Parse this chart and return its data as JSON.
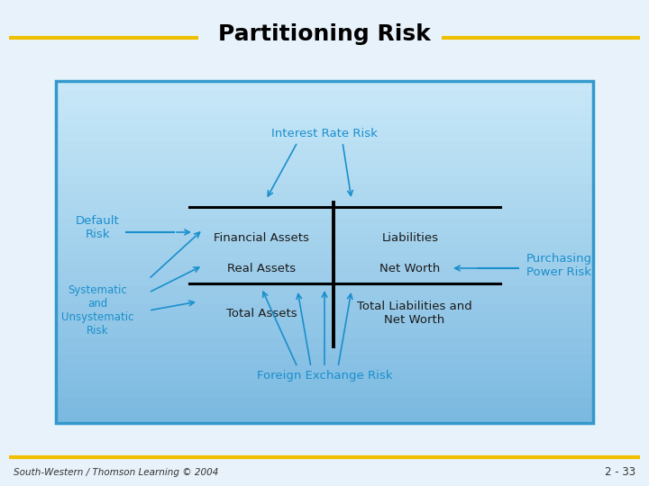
{
  "title": "Partitioning Risk",
  "title_fontsize": 18,
  "title_fontweight": "bold",
  "slide_bg": "#e8f2fa",
  "box_bg_top": "#a8d4f0",
  "box_bg": "#8ec8ee",
  "box_border": "#3399cc",
  "gold_line_color": "#f0c000",
  "cyan_text_color": "#1a8fcc",
  "dark_text_color": "#1a1a1a",
  "footer_text": "South-Western / Thomson Learning © 2004",
  "page_number": "2 - 33",
  "labels": {
    "interest_rate_risk": "Interest Rate Risk",
    "default_risk": "Default\nRisk",
    "financial_assets": "Financial Assets",
    "liabilities": "Liabilities",
    "real_assets": "Real Assets",
    "net_worth": "Net Worth",
    "systematic_risk": "Systematic\nand\nUnsystematic\nRisk",
    "total_assets": "Total Assets",
    "total_liabilities": "Total Liabilities and\nNet Worth",
    "foreign_exchange_risk": "Foreign Exchange Risk",
    "purchasing_power_risk": "Purchasing\nPower Risk"
  }
}
